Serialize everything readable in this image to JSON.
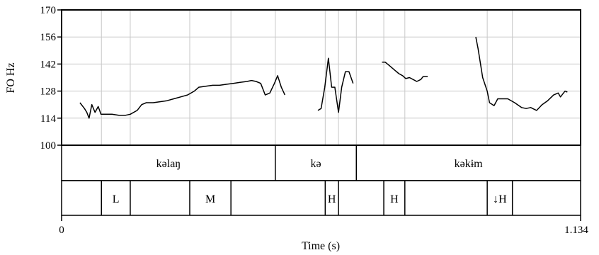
{
  "chart_data": {
    "type": "line",
    "title": "",
    "ylabel": "FO Hz",
    "xlabel": "Time (s)",
    "ylim": [
      100,
      170
    ],
    "xlim": [
      0,
      1.134
    ],
    "y_ticks": [
      "100",
      "114",
      "128",
      "142",
      "156",
      "170"
    ],
    "x_ticks": [
      "0",
      "1.134"
    ],
    "grid": true,
    "line_color": "#000000",
    "grid_color": "#c8c8c8",
    "segments": [
      {
        "points": [
          [
            0.04,
            122
          ],
          [
            0.05,
            119
          ],
          [
            0.055,
            117
          ],
          [
            0.06,
            114
          ],
          [
            0.066,
            121
          ],
          [
            0.073,
            117
          ],
          [
            0.08,
            120
          ],
          [
            0.086,
            116
          ],
          [
            0.095,
            116
          ],
          [
            0.11,
            116
          ],
          [
            0.125,
            115.5
          ],
          [
            0.14,
            115.5
          ],
          [
            0.15,
            116
          ],
          [
            0.165,
            118
          ],
          [
            0.175,
            121
          ],
          [
            0.185,
            122
          ],
          [
            0.2,
            122
          ],
          [
            0.215,
            122.5
          ],
          [
            0.23,
            123
          ],
          [
            0.245,
            124
          ],
          [
            0.26,
            125
          ],
          [
            0.275,
            126
          ],
          [
            0.29,
            128
          ],
          [
            0.3,
            130
          ],
          [
            0.315,
            130.5
          ],
          [
            0.33,
            131
          ],
          [
            0.345,
            131
          ],
          [
            0.36,
            131.5
          ],
          [
            0.375,
            132
          ],
          [
            0.39,
            132.5
          ],
          [
            0.405,
            133
          ],
          [
            0.415,
            133.5
          ],
          [
            0.425,
            133
          ],
          [
            0.435,
            132
          ],
          [
            0.445,
            126
          ],
          [
            0.455,
            127
          ],
          [
            0.465,
            132
          ],
          [
            0.472,
            136
          ],
          [
            0.48,
            130
          ],
          [
            0.488,
            126
          ]
        ]
      },
      {
        "points": [
          [
            0.56,
            118
          ],
          [
            0.567,
            119
          ],
          [
            0.575,
            130
          ],
          [
            0.583,
            145
          ],
          [
            0.59,
            130
          ],
          [
            0.597,
            130
          ],
          [
            0.605,
            117
          ],
          [
            0.612,
            130
          ],
          [
            0.62,
            138
          ],
          [
            0.628,
            138
          ],
          [
            0.637,
            132
          ]
        ]
      },
      {
        "points": [
          [
            0.7,
            143
          ],
          [
            0.707,
            143
          ],
          [
            0.717,
            141
          ],
          [
            0.727,
            139
          ],
          [
            0.737,
            137
          ],
          [
            0.745,
            136
          ],
          [
            0.752,
            134.5
          ],
          [
            0.76,
            135
          ],
          [
            0.768,
            134
          ],
          [
            0.776,
            133
          ],
          [
            0.785,
            134
          ],
          [
            0.79,
            135.5
          ],
          [
            0.8,
            135.5
          ]
        ]
      },
      {
        "points": [
          [
            0.905,
            156
          ],
          [
            0.91,
            150
          ],
          [
            0.92,
            135
          ],
          [
            0.93,
            128
          ],
          [
            0.935,
            122
          ],
          [
            0.945,
            120.5
          ],
          [
            0.953,
            124
          ],
          [
            0.963,
            124
          ],
          [
            0.975,
            124
          ],
          [
            0.99,
            122
          ],
          [
            1.005,
            119.5
          ],
          [
            1.015,
            119
          ],
          [
            1.025,
            119.5
          ],
          [
            1.038,
            118
          ],
          [
            1.05,
            121
          ],
          [
            1.062,
            123
          ],
          [
            1.075,
            126
          ],
          [
            1.085,
            127
          ],
          [
            1.09,
            125
          ],
          [
            1.1,
            128
          ],
          [
            1.105,
            127.5
          ]
        ]
      }
    ]
  },
  "words": [
    {
      "text": "kəlaŋ",
      "start": 0,
      "end": 0.467
    },
    {
      "text": "kə",
      "start": 0.467,
      "end": 0.644
    },
    {
      "text": "kəkɨm",
      "start": 0.644,
      "end": 1.134
    }
  ],
  "tones": [
    {
      "text": "L",
      "start": 0.087,
      "end": 0.15
    },
    {
      "text": "M",
      "start": 0.28,
      "end": 0.37
    },
    {
      "text": "H",
      "start": 0.576,
      "end": 0.605
    },
    {
      "text": "H",
      "start": 0.704,
      "end": 0.75
    },
    {
      "text": "↓H",
      "start": 0.93,
      "end": 0.985
    }
  ],
  "tone_tier_boundaries": [
    0.087,
    0.15,
    0.28,
    0.37,
    0.576,
    0.605,
    0.704,
    0.75,
    0.93,
    0.985
  ]
}
